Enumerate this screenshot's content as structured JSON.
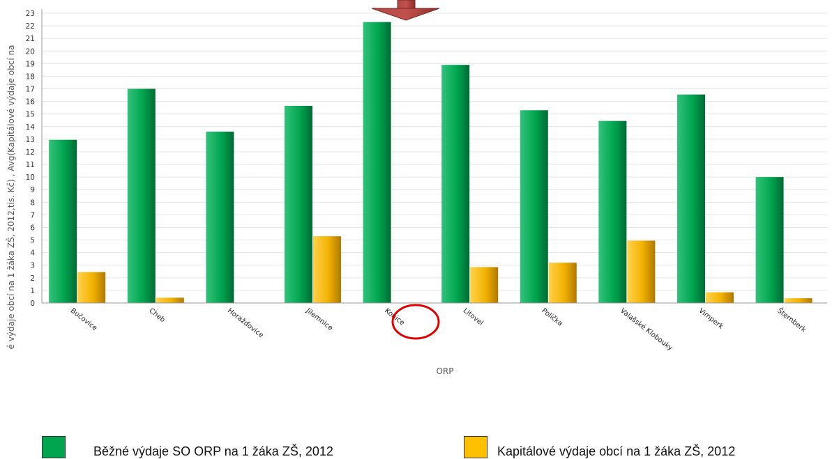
{
  "chart_data": {
    "type": "bar",
    "xlabel": "ORP",
    "ylabel": "é výdaje obcí na 1 žáka ZŠ, 2012,tis. Kč) , Avg(Kapitálové výdaje obcí na",
    "ylim": [
      0,
      23
    ],
    "yticks": [
      0,
      1,
      2,
      3,
      4,
      5,
      6,
      7,
      8,
      9,
      10,
      11,
      12,
      13,
      14,
      15,
      16,
      17,
      18,
      19,
      20,
      21,
      22,
      23
    ],
    "grid": true,
    "legend_position": "bottom",
    "highlighted_category": "Konice",
    "categories": [
      "Bučovice",
      "Cheb",
      "Horažďovice",
      "Jilemnice",
      "Konice",
      "Litovel",
      "Polička",
      "Valašské Klobouky",
      "Vimperk",
      "Šternberk"
    ],
    "series": [
      {
        "name": "Běžné výdaje SO ORP na 1 žáka ZŠ, 2012",
        "color": "#00a550",
        "values": [
          12.95,
          17.0,
          13.6,
          15.65,
          22.3,
          18.9,
          15.3,
          14.45,
          16.55,
          10.0
        ]
      },
      {
        "name": "Kapitálové výdaje obcí na 1 žáka ZŠ, 2012",
        "color": "#ffc000",
        "values": [
          2.45,
          0.42,
          0,
          5.3,
          0,
          2.85,
          3.2,
          4.95,
          0.85,
          0.38
        ]
      }
    ]
  }
}
